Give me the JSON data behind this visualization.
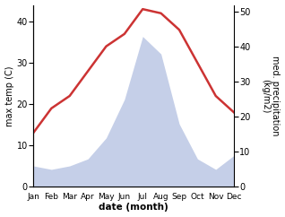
{
  "months": [
    "Jan",
    "Feb",
    "Mar",
    "Apr",
    "May",
    "Jun",
    "Jul",
    "Aug",
    "Sep",
    "Oct",
    "Nov",
    "Dec"
  ],
  "temperature": [
    13,
    19,
    22,
    28,
    34,
    37,
    43,
    42,
    38,
    30,
    22,
    18
  ],
  "precipitation": [
    6,
    5,
    6,
    8,
    14,
    25,
    43,
    38,
    18,
    8,
    5,
    9
  ],
  "temp_color": "#cc3333",
  "precip_color": "#c5cfe8",
  "left_ylabel": "max temp (C)",
  "right_ylabel": "med. precipitation\n(kg/m2)",
  "xlabel": "date (month)",
  "left_ylim": [
    0,
    44
  ],
  "right_ylim": [
    0,
    52
  ],
  "left_yticks": [
    0,
    10,
    20,
    30,
    40
  ],
  "right_yticks": [
    0,
    10,
    20,
    30,
    40,
    50
  ],
  "background_color": "#ffffff",
  "line_width": 1.8
}
